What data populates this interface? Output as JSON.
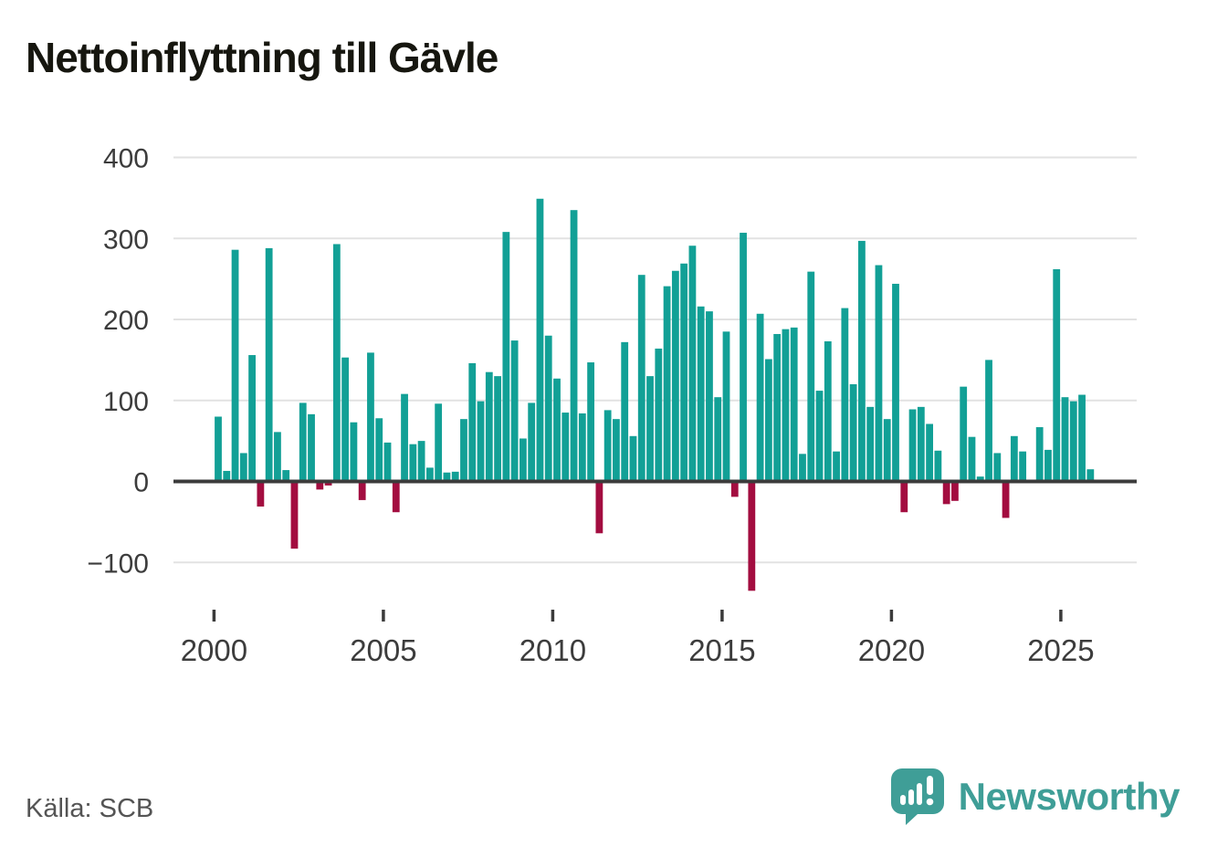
{
  "title": "Nettoinflyttning till Gävle",
  "source": "Källa: SCB",
  "brand": {
    "name": "Newsworthy",
    "logo_icon": "speech-bubble-bar-chart-icon"
  },
  "colors": {
    "positive_bar": "#12a096",
    "negative_bar": "#a30d40",
    "gridline": "#e2e2e2",
    "zero_axis": "#3b3b3b",
    "tick_label": "#3c3c3c",
    "title_text": "#16160f",
    "source_text": "#545454",
    "brand_teal": "#3f9e97"
  },
  "chart_data": {
    "type": "bar",
    "title": "Nettoinflyttning till Gävle",
    "xlabel": "",
    "ylabel": "",
    "x_unit": "quarter",
    "start": "2000-Q1",
    "end": "2025-Q4",
    "x_tick_years": [
      2000,
      2005,
      2010,
      2015,
      2020,
      2025
    ],
    "y_ticks": [
      400,
      300,
      200,
      100,
      0,
      -100
    ],
    "y_tick_labels": [
      "400",
      "300",
      "200",
      "100",
      "0",
      "−100"
    ],
    "ylim": [
      -160,
      400
    ],
    "grid": "horizontal",
    "legend": "none",
    "series": [
      {
        "name": "Nettoinflyttning per kvartal",
        "values": [
          80,
          13,
          286,
          35,
          156,
          -31,
          288,
          61,
          14,
          -83,
          97,
          83,
          -10,
          -5,
          293,
          153,
          73,
          -23,
          159,
          78,
          48,
          -38,
          108,
          46,
          50,
          17,
          96,
          11,
          12,
          77,
          146,
          99,
          135,
          130,
          308,
          174,
          53,
          97,
          349,
          180,
          127,
          85,
          335,
          84,
          147,
          -64,
          88,
          77,
          172,
          56,
          255,
          130,
          164,
          241,
          260,
          269,
          291,
          216,
          210,
          104,
          185,
          -19,
          307,
          -135,
          207,
          151,
          182,
          188,
          190,
          34,
          259,
          112,
          173,
          37,
          214,
          120,
          297,
          92,
          267,
          77,
          244,
          -38,
          89,
          92,
          71,
          38,
          -28,
          -24,
          117,
          55,
          6,
          150,
          35,
          -45,
          56,
          37,
          2,
          67,
          39,
          262,
          104,
          99,
          107,
          15
        ]
      }
    ]
  }
}
